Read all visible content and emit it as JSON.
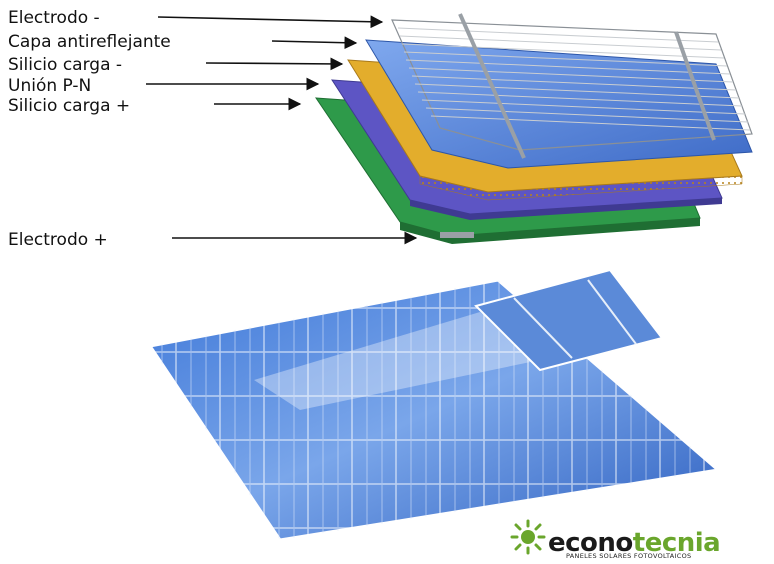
{
  "diagram": {
    "layer_labels": [
      {
        "text": "Electrodo -"
      },
      {
        "text": "Capa antireflejante"
      },
      {
        "text": "Silicio carga -"
      },
      {
        "text": "Unión P-N"
      },
      {
        "text": "Silicio carga +"
      },
      {
        "text": "Electrodo +"
      }
    ],
    "layer_colors": {
      "electrode_grid": "#9aa0a6",
      "antireflective": "#4f7fd6",
      "n_silicon": "#e3ad2c",
      "pn_junction": "#5d55c4",
      "p_silicon": "#2e9a4a"
    }
  },
  "logo": {
    "brand_part1": "econo",
    "brand_part2": "tecnia",
    "tagline": "PANELES SOLARES FOTOVOLTAICOS",
    "brand_color": "#6aa62c",
    "icon": "sun-burst-icon"
  }
}
